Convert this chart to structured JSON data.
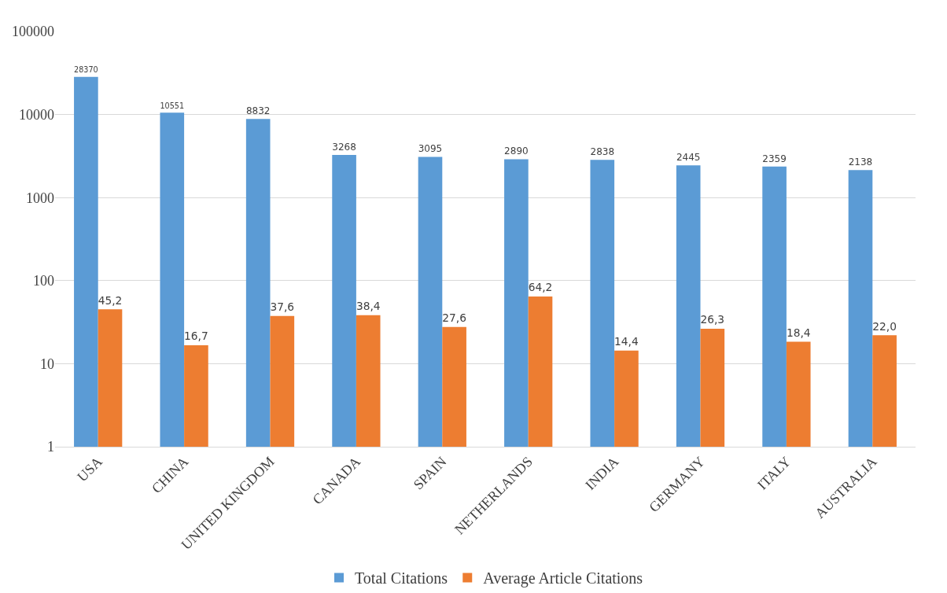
{
  "chart_data": {
    "type": "bar",
    "categories": [
      "USA",
      "CHINA",
      "UNITED KINGDOM",
      "CANADA",
      "SPAIN",
      "NETHERLANDS",
      "INDIA",
      "GERMANY",
      "ITALY",
      "AUSTRALIA"
    ],
    "series": [
      {
        "name": "Total Citations",
        "color": "#5b9bd5",
        "values": [
          28370,
          10551,
          8832,
          3268,
          3095,
          2890,
          2838,
          2445,
          2359,
          2138
        ],
        "value_labels": [
          "28370",
          "10551",
          "8832",
          "3268",
          "3095",
          "2890",
          "2838",
          "2445",
          "2359",
          "2138"
        ]
      },
      {
        "name": "Average Article Citations",
        "color": "#ed7d31",
        "values": [
          45.2,
          16.7,
          37.6,
          38.4,
          27.6,
          64.2,
          14.4,
          26.3,
          18.4,
          22.0
        ],
        "value_labels": [
          "45,2",
          "16,7",
          "37,6",
          "38,4",
          "27,6",
          "64,2",
          "14,4",
          "26,3",
          "18,4",
          "22,0"
        ]
      }
    ],
    "log": "y",
    "ylim": [
      1,
      100000
    ],
    "yticks": [
      1,
      10,
      100,
      1000,
      10000,
      100000
    ],
    "grid": "y",
    "legend": "bottom"
  }
}
